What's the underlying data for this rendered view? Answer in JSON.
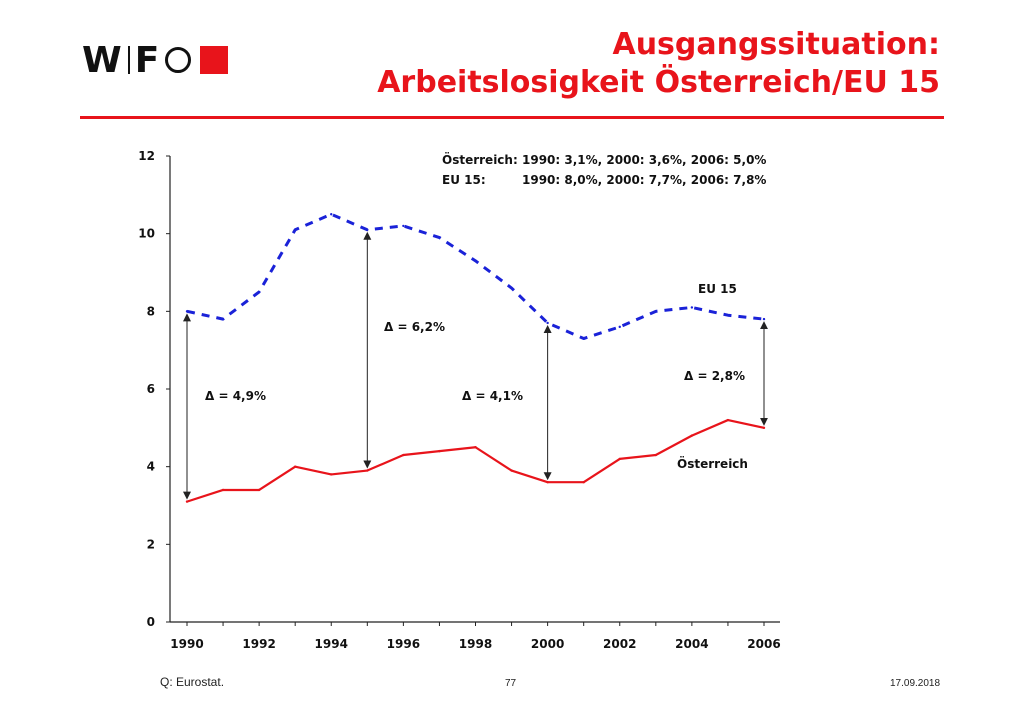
{
  "header": {
    "logo_w": "W",
    "logo_f": "F",
    "title_line1": "Ausgangssituation:",
    "title_line2": "Arbeitslosigkeit Österreich/EU 15",
    "accent_color": "#e8141b"
  },
  "footer": {
    "source": "Q: Eurostat.",
    "page_number": "77",
    "date": "17.09.2018"
  },
  "chart_data": {
    "type": "line",
    "x": [
      1990,
      1991,
      1992,
      1993,
      1994,
      1995,
      1996,
      1997,
      1998,
      1999,
      2000,
      2001,
      2002,
      2003,
      2004,
      2005,
      2006
    ],
    "xticks": [
      "1990",
      "1992",
      "1994",
      "1996",
      "1998",
      "2000",
      "2002",
      "2004",
      "2006"
    ],
    "yticks": [
      "0",
      "2",
      "4",
      "6",
      "8",
      "10",
      "12"
    ],
    "ylim": [
      0,
      12
    ],
    "xlim": [
      1990,
      2006
    ],
    "grid": false,
    "series": [
      {
        "name": "EU 15",
        "color": "#1a22d8",
        "style": "dashed",
        "values": [
          8.0,
          7.8,
          8.5,
          10.1,
          10.5,
          10.1,
          10.2,
          9.9,
          9.3,
          8.6,
          7.7,
          7.3,
          7.6,
          8.0,
          8.1,
          7.9,
          7.8
        ]
      },
      {
        "name": "Österreich",
        "color": "#e8141b",
        "style": "solid",
        "values": [
          3.1,
          3.4,
          3.4,
          4.0,
          3.8,
          3.9,
          4.3,
          4.4,
          4.5,
          3.9,
          3.6,
          3.6,
          4.2,
          4.3,
          4.8,
          5.2,
          5.0
        ]
      }
    ],
    "annotation_line1_label": "Österreich:",
    "annotation_line1_values": "1990: 3,1%, 2000: 3,6%, 2006: 5,0%",
    "annotation_line2_label": "EU 15:",
    "annotation_line2_values": "1990: 8,0%, 2000: 7,7%, 2006: 7,8%",
    "differences": [
      {
        "label": "Δ = 4,9%",
        "x": 1990,
        "from": 3.1,
        "to": 8.0
      },
      {
        "label": "Δ = 6,2%",
        "x": 1995,
        "from": 3.9,
        "to": 10.1
      },
      {
        "label": "Δ = 4,1%",
        "x": 2000,
        "from": 3.6,
        "to": 7.7
      },
      {
        "label": "Δ = 2,8%",
        "x": 2006,
        "from": 5.0,
        "to": 7.8
      }
    ]
  }
}
